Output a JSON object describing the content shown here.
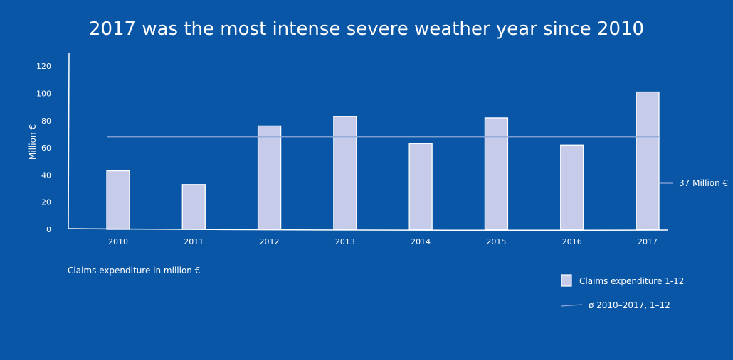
{
  "chart_data": {
    "type": "bar",
    "title": "2017 was the most intense severe weather year since 2010",
    "ylabel": "Million €",
    "xlabel": "",
    "categories": [
      "2010",
      "2011",
      "2012",
      "2013",
      "2014",
      "2015",
      "2016",
      "2017"
    ],
    "series": [
      {
        "name": "Claims expenditure 1-12",
        "values": [
          43,
          33,
          76,
          83,
          63,
          82,
          62,
          101
        ]
      }
    ],
    "average": {
      "name": "ø 2010–2017, 1–12",
      "value": 68
    },
    "ylim": [
      0,
      130
    ],
    "yticks": [
      0,
      20,
      40,
      60,
      80,
      100,
      120
    ],
    "grid": false,
    "legend_position": "bottom-right",
    "annotation": "37 Million €",
    "footnote": "Claims expenditure in million €",
    "colors": {
      "background": "#0a56a6",
      "bar_fill": "#c5cbe9",
      "bar_stroke": "#ffffff",
      "axis": "#ffffff",
      "average_line": "#8fa8d6",
      "text": "#ffffff"
    }
  }
}
